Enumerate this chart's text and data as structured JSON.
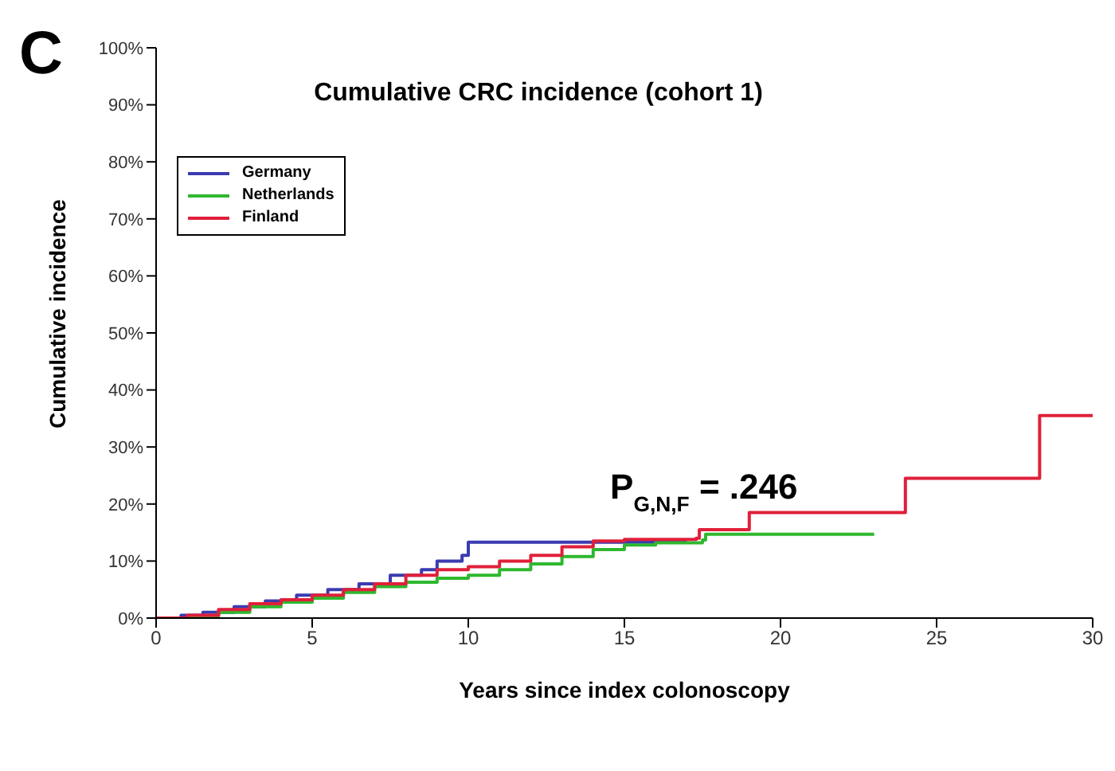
{
  "chart_data": {
    "type": "step",
    "title": "Cumulative CRC incidence (cohort 1)",
    "xlabel": "Years since index colonoscopy",
    "ylabel": "Cumulative incidence",
    "annotations": [
      "C",
      "P$_{G,N,F}$ = .246"
    ],
    "xlim": [
      0,
      30
    ],
    "xticks": [
      0,
      5,
      10,
      15,
      20,
      25,
      30
    ],
    "ylim": [
      0,
      100
    ],
    "yticks": [
      {
        "value": 0,
        "label": "0%"
      },
      {
        "value": 10,
        "label": "10%"
      },
      {
        "value": 20,
        "label": "20%"
      },
      {
        "value": 30,
        "label": "30%"
      },
      {
        "value": 40,
        "label": "40%"
      },
      {
        "value": 50,
        "label": "50%"
      },
      {
        "value": 60,
        "label": "60%"
      },
      {
        "value": 70,
        "label": "70%"
      },
      {
        "value": 80,
        "label": "80%"
      },
      {
        "value": 90,
        "label": "90%"
      },
      {
        "value": 100,
        "label": "100%"
      }
    ],
    "grid": false,
    "legend": "top left",
    "series": [
      {
        "name": "Germany",
        "color": "#3b3bb0",
        "x": [
          0.3,
          0.8,
          1.5,
          2.5,
          3.5,
          4.5,
          5.5,
          6.5,
          7.5,
          8.5,
          9,
          9.8,
          10,
          15.5,
          17
        ],
        "values": [
          0,
          0.5,
          1,
          2,
          3,
          4,
          5,
          6,
          7.5,
          8.5,
          10,
          11,
          13.3,
          13.3,
          13.3
        ]
      },
      {
        "name": "Netherlands",
        "color": "#2eb82e",
        "x": [
          0.5,
          1,
          2,
          3,
          4,
          5,
          6,
          7,
          8,
          9,
          10,
          11,
          12,
          13,
          14,
          15,
          16,
          17.5,
          17.6,
          23
        ],
        "values": [
          0,
          0.3,
          1,
          2,
          2.8,
          3.5,
          4.5,
          5.5,
          6.3,
          7,
          7.5,
          8.5,
          9.5,
          10.8,
          12,
          12.8,
          13.2,
          13.7,
          14.7,
          14.7
        ]
      },
      {
        "name": "Finland",
        "color": "#e0203a",
        "x": [
          0,
          1,
          2,
          3,
          4,
          5,
          6,
          7,
          8,
          9,
          10,
          11,
          12,
          13,
          14,
          15,
          17.3,
          17.4,
          18.9,
          19,
          23.9,
          24,
          28.2,
          28.3,
          30
        ],
        "values": [
          0,
          0.5,
          1.5,
          2.5,
          3.2,
          4,
          5,
          6,
          7.5,
          8.5,
          9,
          10,
          11,
          12.5,
          13.5,
          13.8,
          14,
          15.5,
          15.5,
          18.5,
          18.5,
          24.5,
          24.5,
          35.5,
          35.5
        ]
      }
    ]
  }
}
